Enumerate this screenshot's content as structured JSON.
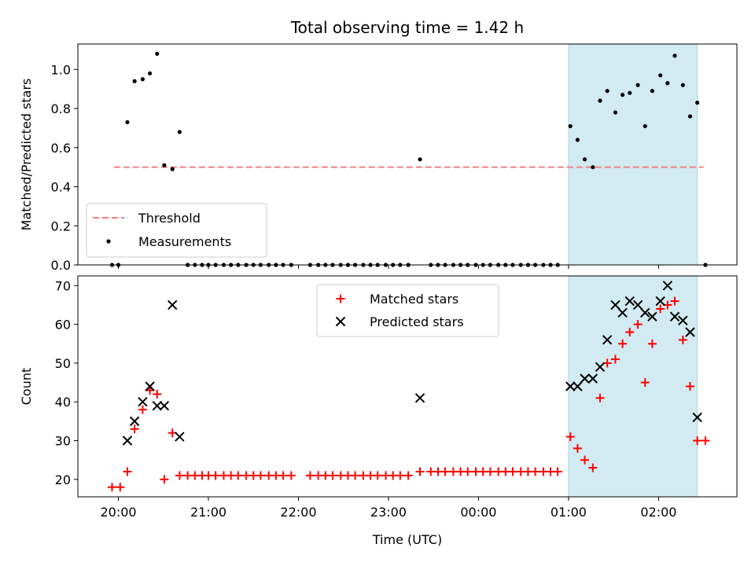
{
  "chart_data": {
    "title": "Total observing time = 1.42 h",
    "xlabel": "Time (UTC)",
    "x_ticks": [
      "20:00",
      "21:00",
      "22:00",
      "23:00",
      "00:00",
      "01:00",
      "02:00"
    ],
    "x_tick_hours": [
      20,
      21,
      22,
      23,
      24,
      25,
      26
    ],
    "xlim_hours": [
      19.55,
      26.87
    ],
    "highlight_span_hours": [
      25.0,
      26.43
    ],
    "colors": {
      "threshold": "#f08080",
      "measurements": "#000000",
      "matched": "#ff0000",
      "predicted": "#000000",
      "span": "#add8e6"
    },
    "panels": [
      {
        "type": "scatter",
        "ylabel": "Matched/Predicted stars",
        "ylim": [
          0,
          1.13
        ],
        "y_ticks": [
          "0.0",
          "0.2",
          "0.4",
          "0.6",
          "0.8",
          "1.0"
        ],
        "y_tick_values": [
          0,
          0.2,
          0.4,
          0.6,
          0.8,
          1.0
        ],
        "legend_placement": "lower-left",
        "series": [
          {
            "name": "Threshold",
            "style": "dashed-line",
            "x": [
              19.95,
              26.5
            ],
            "y": [
              0.5,
              0.5
            ]
          },
          {
            "name": "Measurements",
            "style": "dot",
            "x": [
              19.93,
              20.0,
              20.1,
              20.18,
              20.27,
              20.35,
              20.43,
              20.51,
              20.6,
              20.68,
              20.77,
              20.85,
              20.93,
              21.0,
              21.08,
              21.17,
              21.25,
              21.33,
              21.42,
              21.5,
              21.58,
              21.67,
              21.75,
              21.83,
              21.92,
              22.13,
              22.22,
              22.3,
              22.38,
              22.47,
              22.55,
              22.63,
              22.72,
              22.8,
              22.88,
              22.97,
              23.05,
              23.13,
              23.22,
              23.35,
              23.47,
              23.55,
              23.63,
              23.72,
              23.8,
              23.88,
              23.97,
              24.05,
              24.13,
              24.22,
              24.3,
              24.38,
              24.47,
              24.55,
              24.63,
              24.72,
              24.8,
              24.88,
              25.02,
              25.1,
              25.18,
              25.27,
              25.35,
              25.43,
              25.52,
              25.6,
              25.68,
              25.77,
              25.85,
              25.93,
              26.02,
              26.1,
              26.18,
              26.27,
              26.35,
              26.43,
              26.52
            ],
            "y": [
              0,
              0,
              0.73,
              0.94,
              0.95,
              0.98,
              1.08,
              0.51,
              0.49,
              0.68,
              0,
              0,
              0,
              0,
              0,
              0,
              0,
              0,
              0,
              0,
              0,
              0,
              0,
              0,
              0,
              0,
              0,
              0,
              0,
              0,
              0,
              0,
              0,
              0,
              0,
              0,
              0,
              0,
              0,
              0.54,
              0,
              0,
              0,
              0,
              0,
              0,
              0,
              0,
              0,
              0,
              0,
              0,
              0,
              0,
              0,
              0,
              0,
              0,
              0.71,
              0.64,
              0.54,
              0.5,
              0.84,
              0.89,
              0.78,
              0.87,
              0.88,
              0.92,
              0.71,
              0.89,
              0.97,
              0.93,
              1.07,
              0.92,
              0.76,
              0.83,
              0
            ]
          }
        ],
        "legend": [
          "Threshold",
          "Measurements"
        ]
      },
      {
        "type": "scatter",
        "ylabel": "Count",
        "ylim": [
          15.5,
          72.5
        ],
        "y_ticks": [
          "20",
          "30",
          "40",
          "50",
          "60",
          "70"
        ],
        "y_tick_values": [
          20,
          30,
          40,
          50,
          60,
          70
        ],
        "legend_placement": "upper-center",
        "series": [
          {
            "name": "Matched stars",
            "marker": "plus",
            "x": [
              19.93,
              20.02,
              20.1,
              20.18,
              20.27,
              20.35,
              20.43,
              20.51,
              20.6,
              20.68,
              20.77,
              20.85,
              20.93,
              21.0,
              21.08,
              21.17,
              21.25,
              21.33,
              21.42,
              21.5,
              21.58,
              21.67,
              21.75,
              21.83,
              21.92,
              22.13,
              22.22,
              22.3,
              22.38,
              22.47,
              22.55,
              22.63,
              22.72,
              22.8,
              22.88,
              22.97,
              23.05,
              23.13,
              23.22,
              23.35,
              23.47,
              23.55,
              23.63,
              23.72,
              23.8,
              23.88,
              23.97,
              24.05,
              24.13,
              24.22,
              24.3,
              24.38,
              24.47,
              24.55,
              24.63,
              24.72,
              24.8,
              24.88,
              25.02,
              25.1,
              25.18,
              25.27,
              25.35,
              25.43,
              25.52,
              25.6,
              25.68,
              25.77,
              25.85,
              25.93,
              26.02,
              26.1,
              26.18,
              26.27,
              26.35,
              26.43,
              26.52
            ],
            "y": [
              18,
              18,
              22,
              33,
              38,
              43,
              42,
              20,
              32,
              21,
              21,
              21,
              21,
              21,
              21,
              21,
              21,
              21,
              21,
              21,
              21,
              21,
              21,
              21,
              21,
              21,
              21,
              21,
              21,
              21,
              21,
              21,
              21,
              21,
              21,
              21,
              21,
              21,
              21,
              22,
              22,
              22,
              22,
              22,
              22,
              22,
              22,
              22,
              22,
              22,
              22,
              22,
              22,
              22,
              22,
              22,
              22,
              22,
              31,
              28,
              25,
              23,
              41,
              50,
              51,
              55,
              58,
              60,
              45,
              55,
              64,
              65,
              66,
              56,
              44,
              30,
              30
            ]
          },
          {
            "name": "Predicted stars",
            "marker": "x",
            "x": [
              20.1,
              20.18,
              20.27,
              20.35,
              20.43,
              20.51,
              20.6,
              20.68,
              23.35,
              25.02,
              25.1,
              25.18,
              25.27,
              25.35,
              25.43,
              25.52,
              25.6,
              25.68,
              25.77,
              25.85,
              25.93,
              26.02,
              26.1,
              26.18,
              26.27,
              26.35,
              26.43
            ],
            "y": [
              30,
              35,
              40,
              44,
              39,
              39,
              65,
              31,
              41,
              44,
              44,
              46,
              46,
              49,
              56,
              65,
              63,
              66,
              65,
              63,
              62,
              66,
              70,
              62,
              61,
              58,
              36
            ]
          }
        ],
        "legend": [
          "Matched stars",
          "Predicted stars"
        ]
      }
    ]
  }
}
